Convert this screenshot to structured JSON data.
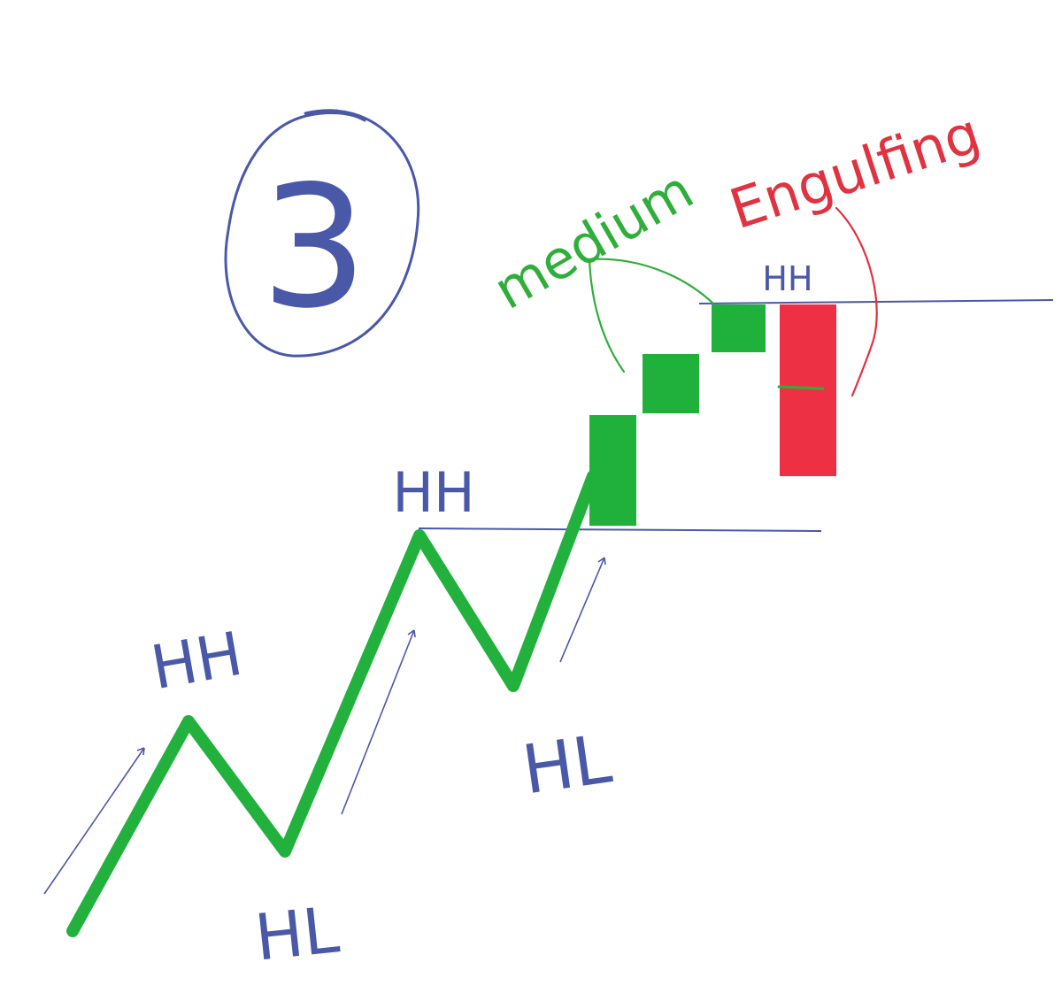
{
  "colors": {
    "background": "#ffffff",
    "trend_line": "#21b13c",
    "level_line": "#4a58a8",
    "bullish_candle": "#1fb13b",
    "bearish_candle": "#ee3045",
    "label_blue": "#4a58a8",
    "label_green": "#2fae3a",
    "label_red": "#e0323f"
  },
  "badge": {
    "number": "3"
  },
  "labels": {
    "hh_1": "HH",
    "hh_2": "HH",
    "hh_3": "HH",
    "hl_1": "HL",
    "hl_2": "HL"
  },
  "annotations": {
    "medium": "medium",
    "engulfing": "Engulfing"
  },
  "icons": {
    "up_arrow": "up-arrow-icon",
    "circle": "circle-icon"
  }
}
